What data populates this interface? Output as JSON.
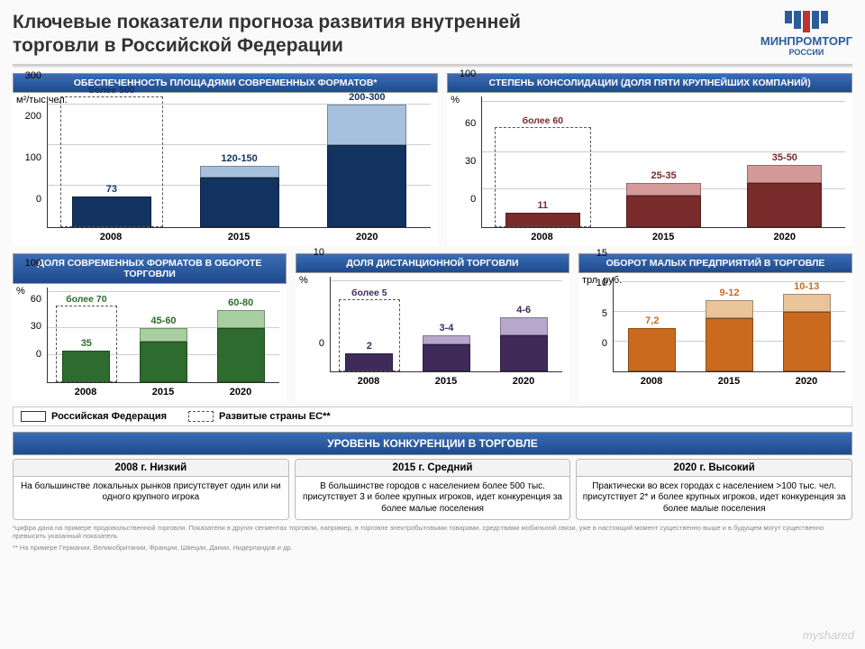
{
  "title": "Ключевые показатели прогноза развития внутренней торговли в Российской Федерации",
  "logo": {
    "name": "МИНПРОМТОРГ",
    "sub": "РОССИИ"
  },
  "legend": {
    "rf": "Российская Федерация",
    "eu": "Развитые страны ЕС**"
  },
  "charts": [
    {
      "id": "c1",
      "title": "ОБЕСПЕЧЕННОСТЬ ПЛОЩАДЯМИ СОВРЕМЕННЫХ ФОРМАТОВ*",
      "unit": "м²/тыс.чел.",
      "ymax": 320,
      "yticks": [
        0,
        100,
        200,
        300
      ],
      "colors": {
        "main": "#12335f",
        "light": "#a7c0de",
        "label": "#12335f"
      },
      "categories": [
        "2008",
        "2015",
        "2020"
      ],
      "bars": [
        {
          "lo": 73,
          "hi": 73,
          "label": "73"
        },
        {
          "lo": 120,
          "hi": 150,
          "label": "120-150"
        },
        {
          "lo": 200,
          "hi": 300,
          "label": "200-300"
        }
      ],
      "ref": {
        "label": "более 500",
        "top_value": 320
      }
    },
    {
      "id": "c2",
      "title": "СТЕПЕНЬ КОНСОЛИДАЦИИ (ДОЛЯ ПЯТИ КРУПНЕЙШИХ КОМПАНИЙ)",
      "unit": "%",
      "ymax": 105,
      "yticks": [
        0,
        30,
        60,
        100
      ],
      "colors": {
        "main": "#7a2b2b",
        "light": "#d49a9a",
        "label": "#7a2b2b"
      },
      "categories": [
        "2008",
        "2015",
        "2020"
      ],
      "bars": [
        {
          "lo": 11,
          "hi": 11,
          "label": "11"
        },
        {
          "lo": 25,
          "hi": 35,
          "label": "25-35"
        },
        {
          "lo": 35,
          "hi": 50,
          "label": "35-50"
        }
      ],
      "ref": {
        "label": "более 60",
        "top_value": 80
      }
    },
    {
      "id": "c3",
      "title": "ДОЛЯ СОВРЕМЕННЫХ ФОРМАТОВ В ОБОРОТЕ ТОРГОВЛИ",
      "unit": "%",
      "ymax": 105,
      "yticks": [
        0,
        30,
        60,
        100
      ],
      "colors": {
        "main": "#2e6b2e",
        "light": "#a7cfa0",
        "label": "#2e6b2e"
      },
      "categories": [
        "2008",
        "2015",
        "2020"
      ],
      "bars": [
        {
          "lo": 35,
          "hi": 35,
          "label": "35"
        },
        {
          "lo": 45,
          "hi": 60,
          "label": "45-60"
        },
        {
          "lo": 60,
          "hi": 80,
          "label": "60-80"
        }
      ],
      "ref": {
        "label": "более 70",
        "top_value": 85
      }
    },
    {
      "id": "c4",
      "title": "ДОЛЯ ДИСТАНЦИОННОЙ ТОРГОВЛИ",
      "unit": "%",
      "ymax": 10.5,
      "yticks": [
        0,
        10
      ],
      "colors": {
        "main": "#3f2a5a",
        "light": "#b8a7cc",
        "label": "#3f2a5a"
      },
      "categories": [
        "2008",
        "2015",
        "2020"
      ],
      "bars": [
        {
          "lo": 2,
          "hi": 2,
          "label": "2"
        },
        {
          "lo": 3,
          "hi": 4,
          "label": "3-4"
        },
        {
          "lo": 4,
          "hi": 6,
          "label": "4-6"
        }
      ],
      "ref": {
        "label": "более 5",
        "top_value": 8
      }
    },
    {
      "id": "c5",
      "title": "ОБОРОТ МАЛЫХ ПРЕДПРИЯТИЙ В ТОРГОВЛЕ",
      "unit": "трл. руб.",
      "ymax": 16,
      "yticks": [
        0,
        5,
        10,
        15
      ],
      "colors": {
        "main": "#c96a1f",
        "light": "#e9c49a",
        "label": "#c96a1f"
      },
      "categories": [
        "2008",
        "2015",
        "2020"
      ],
      "bars": [
        {
          "lo": 7.2,
          "hi": 7.2,
          "label": "7,2"
        },
        {
          "lo": 9,
          "hi": 12,
          "label": "9-12"
        },
        {
          "lo": 10,
          "hi": 13,
          "label": "10-13"
        }
      ],
      "ref": null
    }
  ],
  "competition": {
    "title": "УРОВЕНЬ КОНКУРЕНЦИИ В ТОРГОВЛЕ",
    "cols": [
      {
        "head": "2008 г. Низкий",
        "body": "На большинстве локальных рынков присутствует один или ни одного крупного игрока"
      },
      {
        "head": "2015 г. Средний",
        "body": "В большинстве городов с населением более 500 тыс. присутствует 3 и более крупных игроков, идет конкуренция за более малые поселения"
      },
      {
        "head": "2020 г. Высокий",
        "body": "Практически во всех городах с населением >100 тыс. чел. присутствует 2* и более крупных игроков, идет конкуренция за более малые поселения"
      }
    ]
  },
  "footnotes": [
    "*цифра дана на примере продовольственной торговли. Показатели в других сегментах торговли, например, в торговле электробытовыми товарами, средствами мобильной связи, уже в настоящий момент существенно выше и в будущем могут существенно превысить указанный показатель",
    "** На примере Германии, Великобритании, Франции, Швеции, Дании, Нидерландов и др."
  ],
  "watermark": "myshared"
}
